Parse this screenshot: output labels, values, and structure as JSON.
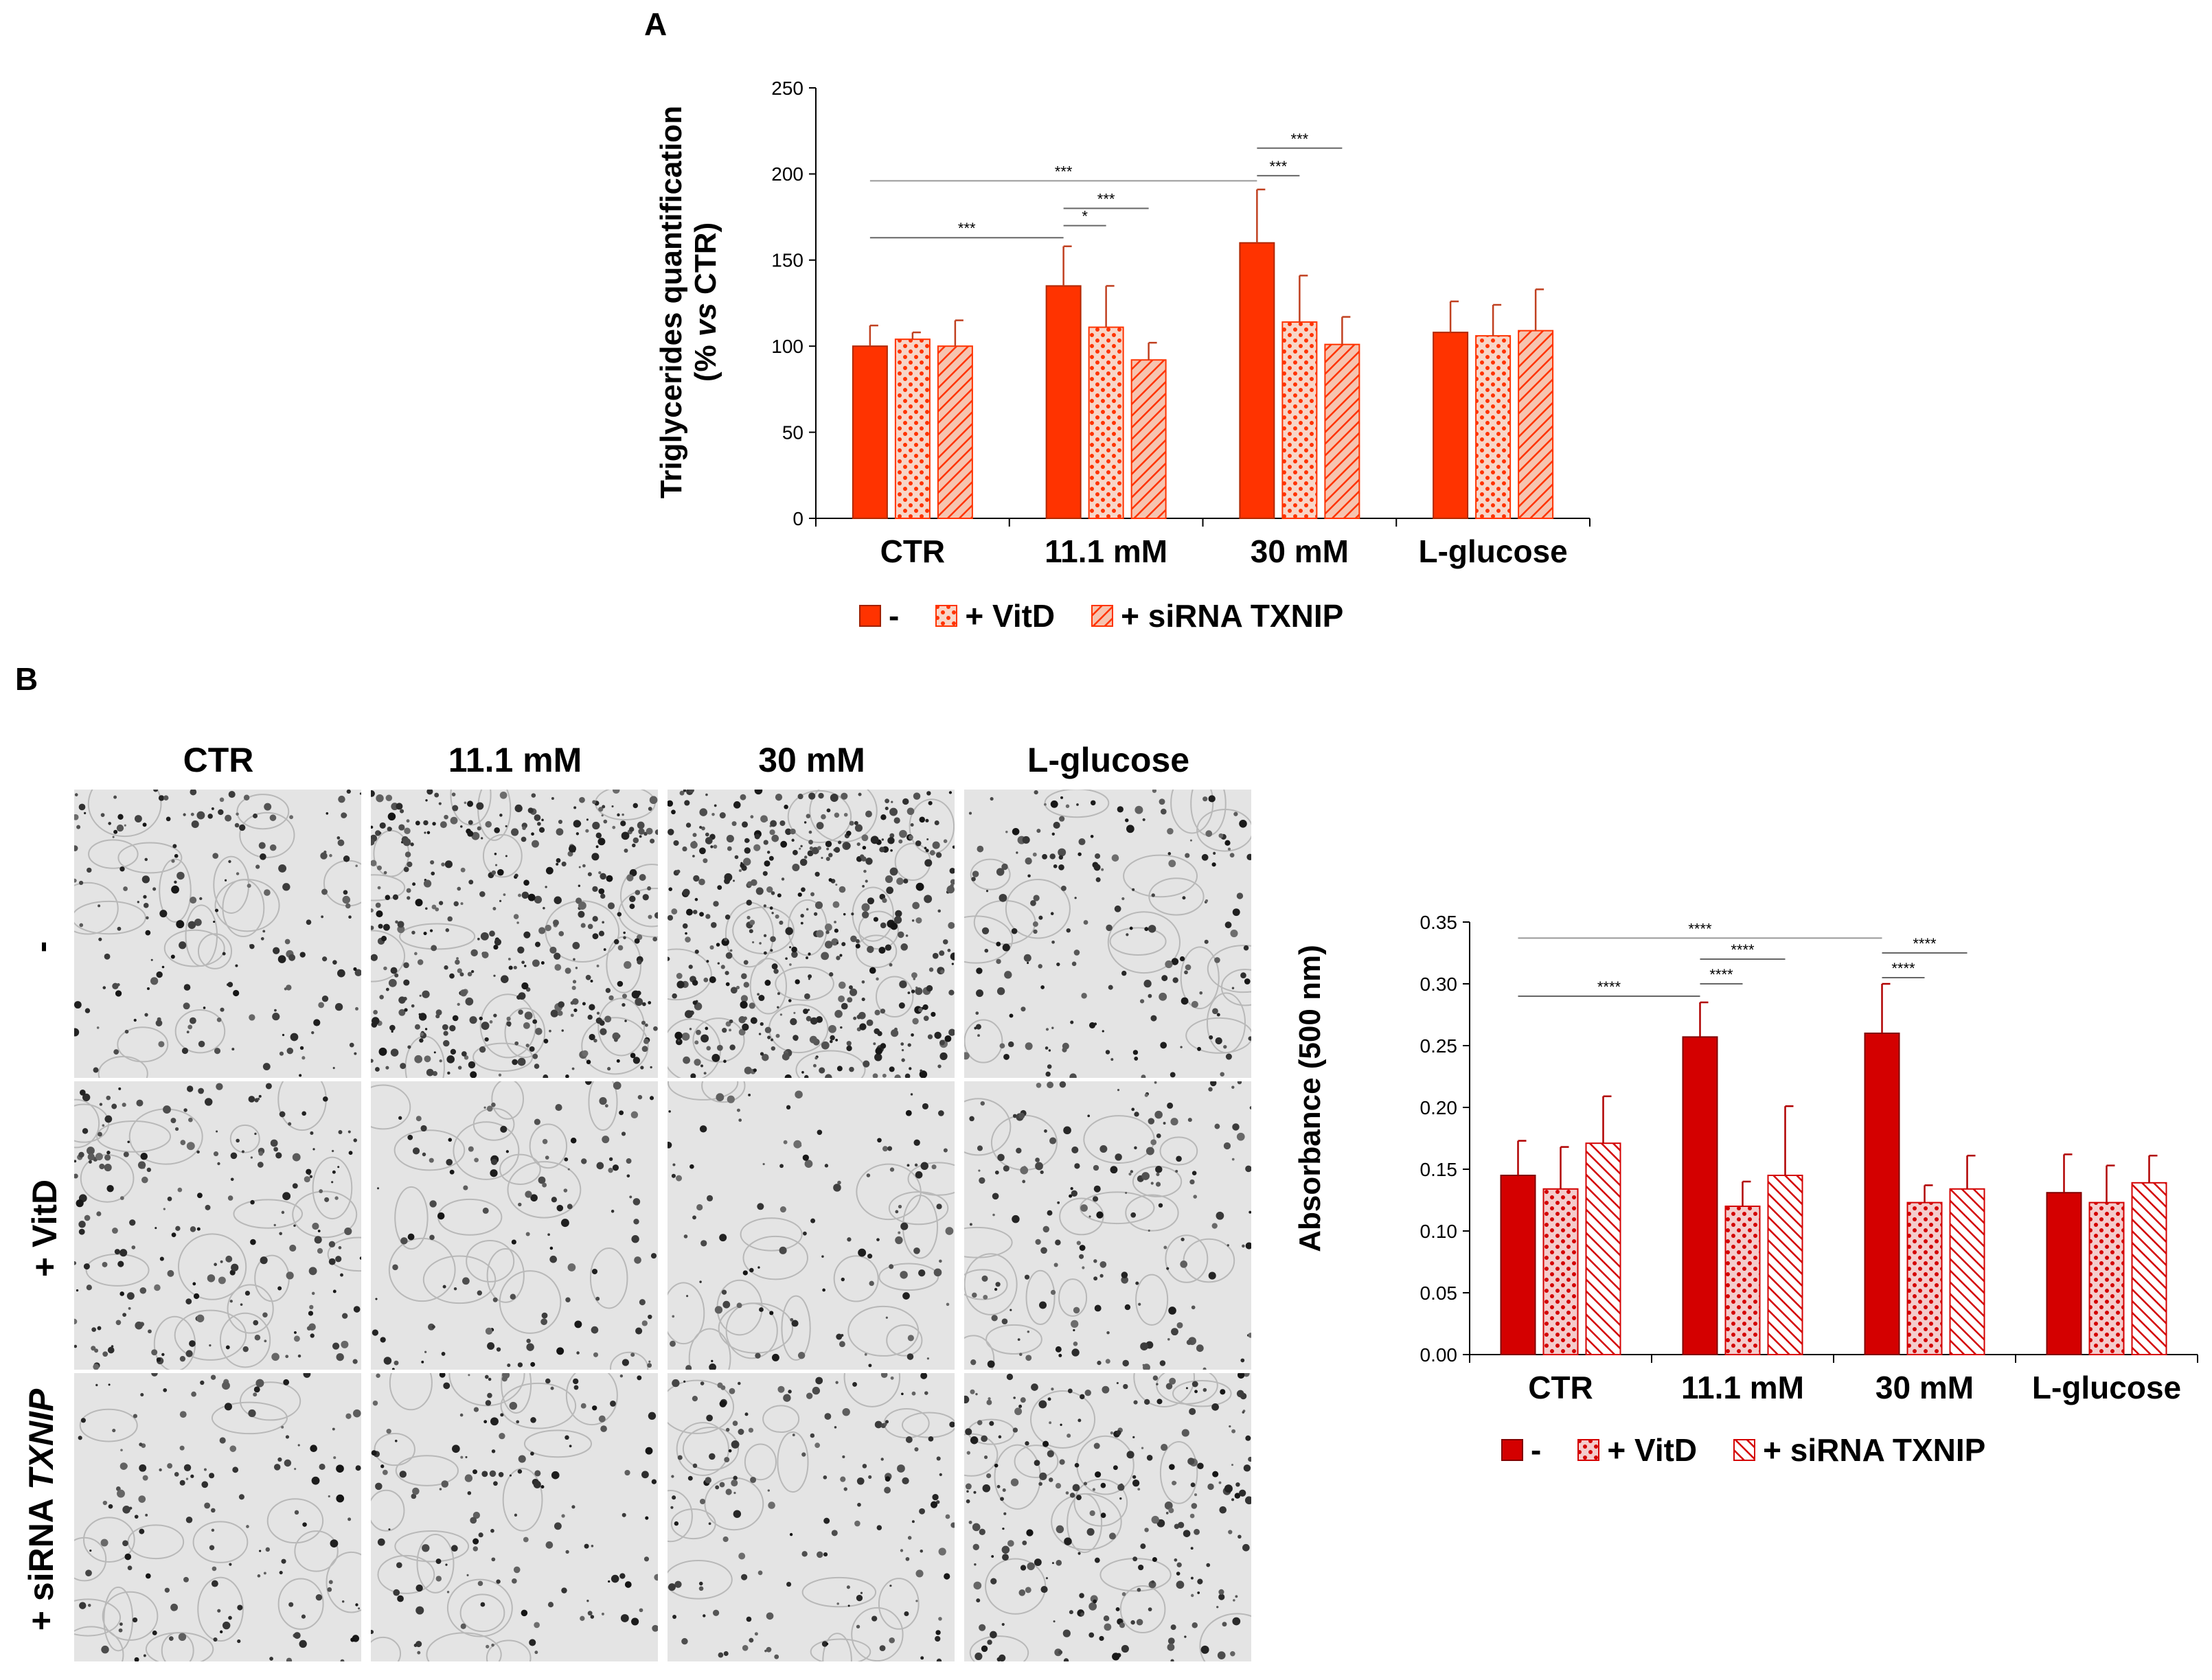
{
  "panel_a": {
    "letter": "A"
  },
  "panel_b": {
    "letter": "B"
  },
  "legend": {
    "items": [
      "-",
      "+ VitD",
      "+ siRNA TXNIP"
    ]
  },
  "colors": {
    "panel_a_solid": "#ff3300",
    "panel_a_light": "#f4a58a",
    "panel_b_solid": "#d40000",
    "panel_b_light": "#e58a8a",
    "sig_line": "#888888"
  },
  "images": {
    "columns": [
      "CTR",
      "11.1 mM",
      "30 mM",
      "L-glucose"
    ],
    "rows": [
      "-",
      "+ VitD",
      "+ siRNA "
    ],
    "row_italic": "TXNIP"
  },
  "chart_data": [
    {
      "type": "bar",
      "ylabel_line1": "Triglycerides quantification",
      "ylabel_line2_pre": "(% ",
      "ylabel_line2_italic": "vs",
      "ylabel_line2_post": " CTR)",
      "xlabel": "",
      "categories": [
        "CTR",
        "11.1 mM",
        "30 mM",
        "L-glucose"
      ],
      "ylim": [
        0,
        250
      ],
      "yticks": [
        "0",
        "50",
        "100",
        "150",
        "200",
        "250"
      ],
      "series": [
        {
          "name": "-",
          "values": [
            100,
            135,
            160,
            108
          ],
          "errors": [
            12,
            23,
            31,
            18
          ]
        },
        {
          "name": "+ VitD",
          "values": [
            104,
            111,
            114,
            106
          ],
          "errors": [
            4,
            24,
            27,
            18
          ]
        },
        {
          "name": "+ siRNA TXNIP",
          "values": [
            100,
            92,
            101,
            109
          ],
          "errors": [
            15,
            10,
            16,
            24
          ]
        }
      ],
      "significance": [
        {
          "label": "***",
          "from": [
            0,
            0
          ],
          "to": [
            1,
            0
          ],
          "y": 163
        },
        {
          "label": "*",
          "from": [
            1,
            0
          ],
          "to": [
            1,
            1
          ],
          "y": 170
        },
        {
          "label": "***",
          "from": [
            1,
            0
          ],
          "to": [
            1,
            2
          ],
          "y": 180
        },
        {
          "label": "***",
          "from": [
            0,
            0
          ],
          "to": [
            2,
            0
          ],
          "y": 196
        },
        {
          "label": "***",
          "from": [
            2,
            0
          ],
          "to": [
            2,
            1
          ],
          "y": 199
        },
        {
          "label": "***",
          "from": [
            2,
            0
          ],
          "to": [
            2,
            2
          ],
          "y": 215
        }
      ]
    },
    {
      "type": "bar",
      "ylabel": "Absorbance (500 nm)",
      "xlabel": "",
      "categories": [
        "CTR",
        "11.1 mM",
        "30 mM",
        "L-glucose"
      ],
      "ylim": [
        0,
        0.35
      ],
      "yticks": [
        "0.00",
        "0.05",
        "0.10",
        "0.15",
        "0.20",
        "0.25",
        "0.30",
        "0.35"
      ],
      "series": [
        {
          "name": "-",
          "values": [
            0.145,
            0.257,
            0.26,
            0.131
          ],
          "errors": [
            0.028,
            0.028,
            0.04,
            0.031
          ]
        },
        {
          "name": "+ VitD",
          "values": [
            0.134,
            0.12,
            0.123,
            0.123
          ],
          "errors": [
            0.034,
            0.02,
            0.014,
            0.03
          ]
        },
        {
          "name": "+ siRNA TXNIP",
          "values": [
            0.171,
            0.145,
            0.134,
            0.139
          ],
          "errors": [
            0.038,
            0.056,
            0.027,
            0.022
          ]
        }
      ],
      "significance": [
        {
          "label": "****",
          "from": [
            0,
            0
          ],
          "to": [
            1,
            0
          ],
          "y": 0.29
        },
        {
          "label": "****",
          "from": [
            1,
            0
          ],
          "to": [
            1,
            1
          ],
          "y": 0.3
        },
        {
          "label": "****",
          "from": [
            1,
            0
          ],
          "to": [
            1,
            2
          ],
          "y": 0.32
        },
        {
          "label": "****",
          "from": [
            0,
            0
          ],
          "to": [
            2,
            0
          ],
          "y": 0.337
        },
        {
          "label": "****",
          "from": [
            2,
            0
          ],
          "to": [
            2,
            1
          ],
          "y": 0.305
        },
        {
          "label": "****",
          "from": [
            2,
            0
          ],
          "to": [
            2,
            2
          ],
          "y": 0.325
        }
      ]
    }
  ]
}
